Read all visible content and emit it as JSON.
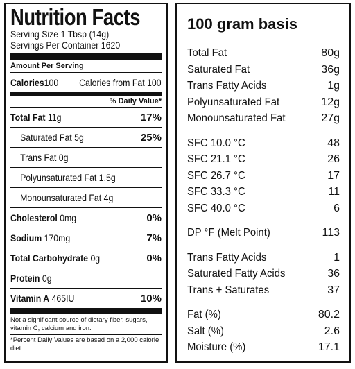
{
  "nutrition": {
    "title": "Nutrition Facts",
    "serving_size": "Serving Size 1 Tbsp (14g)",
    "servings_per_container": "Servings Per Container 1620",
    "amount_per_serving": "Amount Per Serving",
    "calories_label": "Calories",
    "calories_value": "100",
    "calories_from_fat": "Calories from Fat 100",
    "daily_value_header": "% Daily Value*",
    "rows": [
      {
        "name": "Total Fat",
        "amount": "11g",
        "pct": "17%",
        "bold": true
      },
      {
        "name": "Saturated Fat",
        "amount": "5g",
        "pct": "25%",
        "bold": false
      },
      {
        "name": "Trans Fat",
        "amount": "0g",
        "pct": "",
        "bold": false
      },
      {
        "name": "Polyunsaturated Fat",
        "amount": "1.5g",
        "pct": "",
        "bold": false
      },
      {
        "name": "Monounsaturated Fat",
        "amount": "4g",
        "pct": "",
        "bold": false
      },
      {
        "name": "Cholesterol",
        "amount": "0mg",
        "pct": "0%",
        "bold": true
      },
      {
        "name": "Sodium",
        "amount": "170mg",
        "pct": "7%",
        "bold": true
      },
      {
        "name": "Total Carbohydrate",
        "amount": "0g",
        "pct": "0%",
        "bold": true
      },
      {
        "name": "Protein",
        "amount": "0g",
        "pct": "",
        "bold": true
      },
      {
        "name": "Vitamin A",
        "amount": "465IU",
        "pct": "10%",
        "bold": true
      }
    ],
    "footnote_1": "Not a significant source of dietary fiber, sugars, vitamin C, calcium and iron.",
    "footnote_2": "*Percent Daily Values are based on a 2,000  calorie diet."
  },
  "basis": {
    "title": "100 gram basis",
    "groups": [
      [
        {
          "label": "Total Fat",
          "value": "80g"
        },
        {
          "label": "Saturated Fat",
          "value": "36g"
        },
        {
          "label": "Trans Fatty Acids",
          "value": "1g"
        },
        {
          "label": "Polyunsaturated Fat",
          "value": "12g"
        },
        {
          "label": "Monounsaturated Fat",
          "value": "27g"
        }
      ],
      [
        {
          "label": "SFC 10.0 °C",
          "value": "48"
        },
        {
          "label": "SFC 21.1 °C",
          "value": "26"
        },
        {
          "label": "SFC 26.7 °C",
          "value": "17"
        },
        {
          "label": "SFC 33.3 °C",
          "value": "11"
        },
        {
          "label": "SFC 40.0 °C",
          "value": "6"
        }
      ],
      [
        {
          "label": "DP °F (Melt Point)",
          "value": "113"
        }
      ],
      [
        {
          "label": "Trans Fatty Acids",
          "value": "1"
        },
        {
          "label": "Saturated Fatty Acids",
          "value": "36"
        },
        {
          "label": "Trans + Saturates",
          "value": "37"
        }
      ],
      [
        {
          "label": "Fat (%)",
          "value": "80.2"
        },
        {
          "label": "Salt (%)",
          "value": "2.6"
        },
        {
          "label": "Moisture (%)",
          "value": "17.1"
        }
      ]
    ]
  }
}
